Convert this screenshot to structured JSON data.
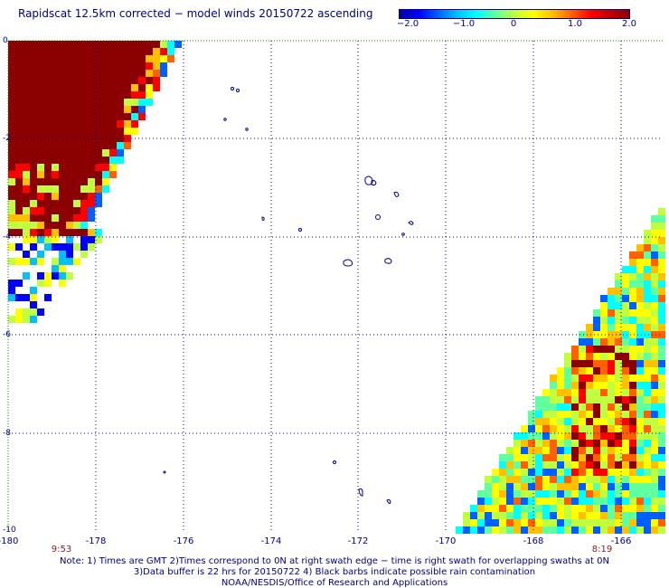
{
  "title": "Rapidscat 12.5km corrected − model winds 20150722 ascending",
  "colorbar": {
    "min": -2.0,
    "max": 2.0,
    "ticks": [
      "−2.0",
      "−1.0",
      "0",
      "1.0",
      "2.0"
    ],
    "colors": [
      "#0000a0",
      "#0000ff",
      "#0060ff",
      "#00c0ff",
      "#00ffff",
      "#60ffa0",
      "#c0ff40",
      "#ffff00",
      "#ffc000",
      "#ff6000",
      "#ff0000",
      "#c00000",
      "#8b0000"
    ]
  },
  "x_axis": {
    "ticks": [
      "-180",
      "-178",
      "-176",
      "-174",
      "-172",
      "-170",
      "-168",
      "-166"
    ]
  },
  "y_axis": {
    "ticks": [
      "0",
      "-2",
      "-4",
      "-6",
      "-8",
      "-10"
    ]
  },
  "times": {
    "left": "9:53",
    "right": "8:19"
  },
  "notes": [
    "Note: 1) Times are GMT 2)Times correspond to 0N at right swath edge − time is right swath for overlapping swaths at 0N",
    "3)Data buffer is 22 hrs for 20150722 4) Black barbs indicate possible rain contamination",
    "NOAA/NESDIS/Office of Research and Applications"
  ],
  "colors": {
    "text": "#000080",
    "grid": "#000080",
    "time": "#8b1a1a"
  }
}
